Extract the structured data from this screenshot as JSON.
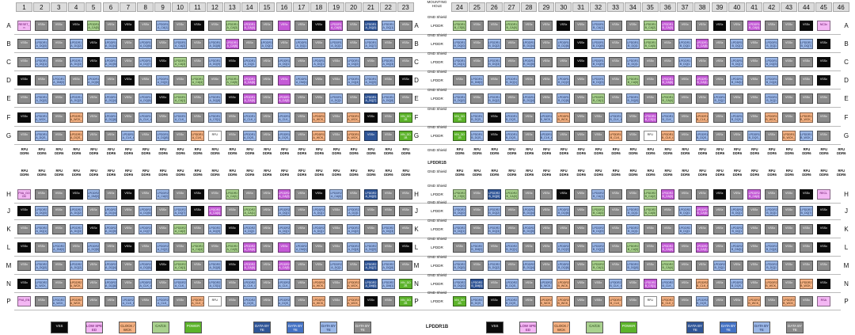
{
  "columns_left": [
    "1",
    "2",
    "3",
    "4",
    "5",
    "6",
    "7",
    "8",
    "9",
    "10",
    "11",
    "12",
    "13",
    "14",
    "15",
    "16",
    "17",
    "18",
    "19",
    "20",
    "21",
    "22",
    "23"
  ],
  "columns_right": [
    "24",
    "25",
    "26",
    "27",
    "28",
    "29",
    "30",
    "31",
    "32",
    "33",
    "34",
    "35",
    "36",
    "37",
    "38",
    "39",
    "40",
    "41",
    "42",
    "43",
    "44",
    "45",
    "46"
  ],
  "mounting_hole": "MOUNTING HOLE",
  "rows": [
    {
      "label": "A",
      "mid": "LPDDR"
    },
    {
      "label": "B",
      "mid": "LPDDR"
    },
    {
      "label": "C",
      "mid": "LPDDR"
    },
    {
      "label": "D",
      "mid": "LPDDR"
    },
    {
      "label": "E",
      "mid": "LPDDR"
    },
    {
      "label": "F",
      "mid": ""
    },
    {
      "label": "G",
      "mid": "LPDDR"
    },
    {
      "label": "H",
      "mid": "LPDDR"
    },
    {
      "label": "J",
      "mid": "LPDDR"
    },
    {
      "label": "K",
      "mid": "LPDDR"
    },
    {
      "label": "L",
      "mid": "LPDDR"
    },
    {
      "label": "M",
      "mid": "LPDDR"
    },
    {
      "label": "N",
      "mid": "LPDDR"
    },
    {
      "label": "P",
      "mid": "LPDDR"
    }
  ],
  "gnd_shield": "GND Shield",
  "center_label": "LPDDR1B",
  "legend_center": "LPDDR1B",
  "rfu_top": "RFU",
  "rfu_bottom": "DDR6",
  "legend": [
    {
      "label": "VSS",
      "cls": "k"
    },
    {
      "label": "LOW SPEED",
      "cls": "pk"
    },
    {
      "label": "CLOCK /WCK",
      "cls": "og"
    },
    {
      "label": "CA/CS",
      "cls": "gr"
    },
    {
      "label": "POWER",
      "cls": "gn"
    },
    {
      "label": "DATA BYTE",
      "cls": "db"
    },
    {
      "label": "DATA BYTE",
      "cls": "mb"
    },
    {
      "label": "DATA BYTE",
      "cls": "lb"
    },
    {
      "label": "DATA BYTE",
      "cls": "gy"
    }
  ],
  "colors": {
    "vss": "#0a0a0a",
    "low_speed": "#f3b6f3",
    "clock": "#f4b183",
    "ca_cs": "#a9d18e",
    "power": "#5cb32a",
    "data1": "#2f5597",
    "data2": "#4472c4",
    "data3": "#9bb7e6",
    "data4": "#8a8a8a"
  },
  "grid": {
    "A": [
      "pk:RESET_n",
      "gy:VSSx",
      "gy:VSSx",
      "k:VSSx",
      "gr:LPDDR1A_CA[0]",
      "gy:VSSx",
      "k:VSSx",
      "gy:VSSx",
      "lb:LPDDR1A_CA[1]",
      "gy:VSSx",
      "k:VSSx",
      "gy:VSSx",
      "gr:LPDDR1A_CA[3]",
      "pu:LPDDR1A_CA[4]",
      "gy:VSSx",
      "pu:VSSx",
      "gy:VSSx",
      "k:VSSx",
      "pu:LPDDR1A_CA[5]",
      "gy:VSSx",
      "db:LPDDR1A_DQ[0]",
      "lb:LPDDR1A_DQ[1]",
      "gy:VSSx",
      "gr:LPDDR1B_CS[0]",
      "gy:VSSx",
      "gy:VSSx",
      "gr:LPDDR1B_CA[0]",
      "gy:VSSx",
      "gy:VSSx",
      "k:VSSx",
      "gy:VSSx",
      "lb:LPDDR1B_CA[1]",
      "gy:VSSx",
      "gy:VSSx",
      "gr:LPDDR1B_CA[2]",
      "pu:LPDDR1B_CA[3]",
      "gy:VSSx",
      "gy:VSSx",
      "k:VSSx",
      "gy:VSSx",
      "pu:LPDDR1B_CA[4]",
      "gy:VSSx",
      "gy:VSSx",
      "k:VSSx",
      "pk:NC3x"
    ],
    "B": [
      "gy:VSSx",
      "lb:LPDDR1A_DQ[0]",
      "gy:VSSx",
      "lb:LPDDR1A_DQ[2]",
      "k:VSSx",
      "lb:LPDDR1A_DQ[4]",
      "gy:VSSx",
      "lb:LPDDR1A_DQ[6]",
      "gy:VSSx",
      "lb:LPDDR1A_CA[2]",
      "gy:VSSx",
      "lb:LPDDR1A_DQ[8]",
      "pu:LPDDR1A_CA[6]",
      "gy:VSSx",
      "lb:LPDDR1A_DQ[10]",
      "gy:VSSx",
      "lb:LPDDR1A_DQ[12]",
      "gy:VSSx",
      "lb:LPDDR1A_DQ[14]",
      "gy:VSSx",
      "lb:LPDDR1A_DQ[7]",
      "gy:VSSx",
      "gy:VSSx",
      "lb:LPDDR1B_DQ[0]",
      "gy:VSSx",
      "lb:LPDDR1B_DQ[2]",
      "gy:VSSx",
      "lb:LPDDR1B_DQ[4]",
      "gy:VSSx",
      "lb:LPDDR1B_DQ[6]",
      "k:VSSx",
      "lb:LPDDR1B_DQ[8]",
      "gy:VSSx",
      "lb:LPDDR1B_DQ[10]",
      "gr:LPDDR1B_CA[5]",
      "gy:VSSx",
      "lb:LPDDR1B_DQ[12]",
      "pu:LPDDR1B_CA[6]",
      "gy:VSSx",
      "lb:LPDDR1B_DQ[14]",
      "gy:VSSx",
      "lb:LPDDR1B_DQ[15]",
      "gy:VSSx",
      "lb:LPDDR1B_DQ[7]",
      "k:VSSx"
    ],
    "C": [
      "gy:VSSx",
      "lb:LPDDR1A_DQ[1]",
      "gy:VSSx",
      "lb:LPDDR1A_DQ[3]",
      "k:VSSx",
      "lb:LPDDR1A_DQ[5]",
      "gy:VSSx",
      "lb:LPDDR1A_DQ[7]",
      "k:VSSx",
      "gr:LPDDR1A_CA[3]",
      "gy:VSSx",
      "lb:LPDDR1A_DQ[9]",
      "k:VSSx",
      "lb:LPDDR1A_DQ[11]",
      "gy:VSSx",
      "lb:LPDDR1A_DQ[13]",
      "gy:VSSx",
      "lb:LPDDR1A_DQ[15]",
      "gy:VSSx",
      "lb:LPDDR1A_DQ[2]",
      "gy:VSSx",
      "lb:LPDDR1A_DQ[3]",
      "gy:VSSx",
      "lb:LPDDR1B_DQ[1]",
      "gy:VSSx",
      "lb:LPDDR1B_DQ[3]",
      "gy:VSSx",
      "lb:LPDDR1B_DQ[5]",
      "gy:VSSx",
      "gy:VSSx",
      "k:VSSx",
      "lb:LPDDR1B_DQ[9]",
      "gy:VSSx",
      "lb:LPDDR1B_DQ[11]",
      "gy:VSSx",
      "gy:VSSx",
      "lb:LPDDR1B_DQ[13]",
      "gy:VSSx",
      "gy:VSSx",
      "lb:LPDDR1B_DQ[15]",
      "gy:VSSx",
      "lb:LPDDR1B_DQ[3]",
      "gy:VSSx",
      "gy:VSSx",
      "k:VSSx"
    ],
    "D": [
      "k:VSSx",
      "gy:VSSx",
      "lb:LPDDR1A_DM[0]",
      "gy:VSSx",
      "lb:LPDDR1A_DQ[6]",
      "gy:VSSx",
      "k:VSSx",
      "gy:VSSx",
      "lb:LPDDR1A_DQ[1]",
      "gy:VSSx",
      "gr:LPDDR1A_CA[4]",
      "gy:VSSx",
      "gr:LPDDR1A_CA[5]",
      "pu:LPDDR1A_CA[6]",
      "gy:VSSx",
      "pu:VSSx",
      "lb:LPDDR1A_DM[1]",
      "gy:VSSx",
      "gy:VSSx",
      "lb:LPDDR1A_DQ[4]",
      "lb:LPDDR1A_DQ[5]",
      "gy:VSSx",
      "k:VSSx",
      "gy:VSSx",
      "lb:LPDDR1B_DM[0]",
      "gy:VSSx",
      "lb:LPDDR1B_DQ[1]",
      "gy:VSSx",
      "gy:VSSx",
      "lb:LPDDR1B_DQ[2]",
      "gy:VSSx",
      "lb:LPDDR1B_DQ[3]",
      "gy:VSSx",
      "gr:LPDDR1B_CA[5]",
      "gy:VSSx",
      "pu:LPDDR1B_CA[6]",
      "gy:VSSx",
      "pu:LPDDR1B_CA[1]",
      "gy:VSSx",
      "lb:LPDDR1B_DM[1]",
      "gy:VSSx",
      "lb:LPDDR1B_DQ[4]",
      "gy:VSSx",
      "gy:VSSx",
      "k:VSSx"
    ],
    "E": [
      "gy:VSSx",
      "lb:LPDDR1A_DQ[0]",
      "gy:VSSx",
      "lb:LPDDR1A_DQ[2]",
      "gy:VSSx",
      "lb:LPDDR1A_DQ[4]",
      "gy:VSSx",
      "lb:LPDDR1A_DQ[6]",
      "k:VSSx",
      "gr:LPDDR1A_CA[1]",
      "gy:VSSx",
      "lb:LPDDR1A_DQ[8]",
      "k:VSSx",
      "pu:LPDDR1A_CA[6]",
      "gy:VSSx",
      "pu:LPDDR1A_CA[5]",
      "gy:VSSx",
      "gy:VSSx",
      "lb:LPDDR1A_DQ[12]",
      "gy:VSSx",
      "db:LPDDR1A_DQ[7]",
      "lb:LPDDR1A_DQ[6]",
      "gy:VSSx",
      "lb:LPDDR1B_DQ[0]",
      "gy:VSSx",
      "lb:LPDDR1B_DQ[2]",
      "gy:VSSx",
      "lb:LPDDR1B_DQ[4]",
      "gy:VSSx",
      "lb:LPDDR1B_DQ[6]",
      "gy:VSSx",
      "gr:LPDDR1B_CA[1]",
      "gy:VSSx",
      "lb:LPDDR1B_DQ[8]",
      "gy:VSSx",
      "gr:LPDDR1B_CA[4]",
      "gy:VSSx",
      "gy:VSSx",
      "lb:LPDDR1B_DQ[12]",
      "gy:VSSx",
      "gy:VSSx",
      "lb:LPDDR1B_DQ[14]",
      "gy:VSSx",
      "gy:VSSx",
      "gy:VSSx"
    ],
    "F": [
      "k:VSSx",
      "lb:LPDDR1A_WCK_t",
      "gy:VSSx",
      "og:LPDDR1A_WCK_c",
      "gy:VSSx",
      "lb:LPDDR1A_DQ[8]",
      "gy:VSSx",
      "lb:LPDDR1A_CLK_t",
      "gy:VSSx",
      "lb:LPDDR1A_CLK_c",
      "gy:VSSx",
      "lb:LPDDR1A_CS[1]",
      "gy:VSSx",
      "lb:LPDDR1A_CLK_t",
      "gy:VSSx",
      "lb:LPDDR1A_CLK_c",
      "gy:VSSx",
      "og:LPDDR1A_WCK_t",
      "gy:VSSx",
      "og:LPDDR1A_WCK_c",
      "k:VSSx",
      "gy:VSSx",
      "gn:VIN_DD1B",
      "gn:VIN_DD1B",
      "lb:LPDDR1B_DQS_t",
      "k:VSSx",
      "lb:LPDDR1B_DQS_c",
      "gy:VSSx",
      "lb:LPDDR1B_WCK_t",
      "og:LPDDR1B_WCK_c",
      "gy:VSSx",
      "gy:VSSx",
      "lb:LPDDR1B_CLK_t",
      "gy:VSSx",
      "pu:LPDDR1B_CS[1]",
      "lb:LPDDR1B_CLK_c",
      "gy:VSSx",
      "og:LPDDR1B_CLK_t",
      "gy:VSSx",
      "lb:LPDDR1B_DQS_t",
      "gy:VSSx",
      "og:LPDDR1B_WCK_t",
      "gy:VSSx",
      "og:LPDDR1B_WCK_c",
      "gy:VSSx"
    ],
    "G": [
      "gy:VSSx",
      "lb:LPDDR1A_DQS_t",
      "gy:VSSx",
      "og:LPDDR1A_DQS_c",
      "gy:VSSx",
      "gy:VSSx",
      "lb:LPDDR1A_CLK_t",
      "gy:VSSx",
      "lb:LPDDR1A_DQ[8]",
      "gy:VSSx",
      "og:LPDDR1A_CLK_c",
      "wh:RFU",
      "gy:VSSx",
      "lb:LPDDR1A_DQS_t",
      "gy:VSSx",
      "lb:LPDDR1A_DQS_c",
      "gy:VSSx",
      "og:LPDDR1A_WCK_t",
      "gy:VSSx",
      "og:LPDDR1A_WCK_c",
      "db:VSSx",
      "gy:VSSx",
      "gn:VIN_DD1B",
      "gn:VIN_DD1B",
      "lb:LPDDR1B_DQS_c",
      "k:VSSx",
      "lb:LPDDR1B_DQS_t",
      "gy:VSSx",
      "lb:LPDDR1B_CLK_t",
      "gy:VSSx",
      "gy:VSSx",
      "gy:VSSx",
      "og:LPDDR1B_CLK_c",
      "gy:VSSx",
      "wh:RFU",
      "og:LPDDR1B_CLK_t",
      "gy:VSSx",
      "lb:LPDDR1B_DQS_c",
      "gy:VSSx",
      "gy:VSSx",
      "lb:LPDDR1B_DQS_t",
      "gy:VSSx",
      "og:LPDDR1B_WCK_t",
      "lb:LPDDR1B_WCK_c",
      "gy:VSSx"
    ],
    "H": [
      "pk:PVA_GOOD",
      "gy:VSSx",
      "gy:VSSx",
      "k:VSSx",
      "lb:LPDDR2A_DM[0]",
      "gy:VSSx",
      "k:VSSx",
      "gy:VSSx",
      "lb:LPDDR2A_CA[0]",
      "gy:VSSx",
      "k:VSSx",
      "gy:VSSx",
      "gr:LPDDR2A_CA[1]",
      "gy:VSSx",
      "gy:VSSx",
      "pu:LPDDR2A_CA[3]",
      "gy:VSSx",
      "k:VSSx",
      "lb:LPDDR2A_CA[6]",
      "gy:VSSx",
      "db:LPDDR2A_DQ[0]",
      "gy:VSSx",
      "gy:VSSx",
      "gr:LPDDR2B_CS[0]",
      "gy:VSSx",
      "db:LPDDR2B_DQ[0]",
      "gr:LPDDR2B_CA[0]",
      "gy:VSSx",
      "gy:VSSx",
      "k:VSSx",
      "gy:VSSx",
      "lb:LPDDR2B_CA[1]",
      "gy:VSSx",
      "gy:VSSx",
      "gr:LPDDR2B_CA[2]",
      "pu:LPDDR2B_CA[3]",
      "gy:VSSx",
      "gy:VSSx",
      "k:VSSx",
      "gy:VSSx",
      "pu:LPDDR2B_CA[4]",
      "gy:VSSx",
      "gy:VSSx",
      "k:VSSx",
      "pk:RECL"
    ],
    "J": [
      "k:VSSx",
      "lb:LPDDR2A_DQ[0]",
      "gy:VSSx",
      "lb:LPDDR2A_DQ[2]",
      "gy:VSSx",
      "lb:LPDDR2A_DQ[4]",
      "gy:VSSx",
      "lb:LPDDR2A_DQ[6]",
      "gy:VSSx",
      "lb:LPDDR2A_DQ[7]",
      "k:VSSx",
      "pu:LPDDR2A_CA[0]",
      "gy:VSSx",
      "gr:LPDDR2A_CA[1]",
      "gy:VSSx",
      "lb:LPDDR2A_DQ[10]",
      "gy:VSSx",
      "lb:LPDDR2A_DQ[12]",
      "gy:VSSx",
      "lb:LPDDR2A_DQ[14]",
      "gy:VSSx",
      "gy:VSSx",
      "gy:VSSx",
      "lb:LPDDR2B_DQ[0]",
      "gy:VSSx",
      "lb:LPDDR2B_DQ[2]",
      "gy:VSSx",
      "lb:LPDDR2B_DQ[4]",
      "gy:VSSx",
      "lb:LPDDR2B_DQ[6]",
      "gy:VSSx",
      "gr:LPDDR2B_CA[0]",
      "gy:VSSx",
      "lb:LPDDR2B_DQ[10]",
      "gr:LPDDR2B_CA[5]",
      "gy:VSSx",
      "lb:LPDDR2B_DQ[12]",
      "pu:LPDDR2B_CA[6]",
      "gy:VSSx",
      "lb:LPDDR2B_DQ[14]",
      "gy:VSSx",
      "lb:LPDDR2B_DQ[15]",
      "gy:VSSx",
      "lb:LPDDR2B_DQ[7]",
      "k:VSSx"
    ],
    "K": [
      "gy:VSSx",
      "lb:LPDDR2A_DQ[1]",
      "gy:VSSx",
      "lb:LPDDR2A_DQ[3]",
      "k:VSSx",
      "lb:LPDDR2A_DQ[5]",
      "gy:VSSx",
      "lb:LPDDR2A_DQ[7]",
      "gy:VSSx",
      "gr:LPDDR2A_CA[2]",
      "gy:VSSx",
      "lb:LPDDR2A_DQ[9]",
      "k:VSSx",
      "lb:LPDDR2A_DQ[11]",
      "gy:VSSx",
      "lb:LPDDR2A_DQ[13]",
      "gy:VSSx",
      "lb:LPDDR2A_DQ[15]",
      "gy:VSSx",
      "lb:LPDDR2A_DQ[2]",
      "gy:VSSx",
      "lb:LPDDR2A_DQ[3]",
      "gy:VSSx",
      "lb:LPDDR2B_DQ[1]",
      "gy:VSSx",
      "lb:LPDDR2B_DQ[3]",
      "gy:VSSx",
      "lb:LPDDR2B_DQ[5]",
      "gy:VSSx",
      "gy:VSSx",
      "gy:VSSx",
      "lb:LPDDR2B_DQ[9]",
      "gy:VSSx",
      "lb:LPDDR2B_DQ[11]",
      "gy:VSSx",
      "gy:VSSx",
      "lb:LPDDR2B_DQ[13]",
      "gy:VSSx",
      "gy:VSSx",
      "lb:LPDDR2B_DQ[15]",
      "gy:VSSx",
      "gy:VSSx",
      "gy:VSSx",
      "gy:VSSx",
      "k:VSSx"
    ],
    "L": [
      "k:VSSx",
      "gy:VSSx",
      "lb:LPDDR2A_DM[0]",
      "gy:VSSx",
      "lb:LPDDR2A_DQ[6]",
      "gy:VSSx",
      "k:VSSx",
      "gy:VSSx",
      "lb:LPDDR2A_DQ[1]",
      "gy:VSSx",
      "gr:LPDDR2A_CA[4]",
      "gy:VSSx",
      "gr:LPDDR2A_CA[5]",
      "pu:LPDDR2A_CA[6]",
      "gy:VSSx",
      "pu:VSSx",
      "lb:LPDDR2A_DM[1]",
      "gy:VSSx",
      "gy:VSSx",
      "lb:LPDDR2A_DQ[4]",
      "lb:LPDDR2A_DQ[5]",
      "gy:VSSx",
      "k:VSSx",
      "gy:VSSx",
      "lb:LPDDR2B_DM[0]",
      "gy:VSSx",
      "lb:LPDDR2B_DQ[1]",
      "gy:VSSx",
      "gy:VSSx",
      "lb:LPDDR2B_DQ[2]",
      "gy:VSSx",
      "lb:LPDDR2B_DQ[3]",
      "gy:VSSx",
      "gr:LPDDR2B_CA[5]",
      "gy:VSSx",
      "pu:LPDDR2B_CA[6]",
      "gy:VSSx",
      "pu:LPDDR2B_CA[1]",
      "gy:VSSx",
      "lb:LPDDR2B_DM[1]",
      "gy:VSSx",
      "lb:LPDDR2B_DQ[4]",
      "gy:VSSx",
      "gy:VSSx",
      "k:VSSx"
    ],
    "M": [
      "gy:VSSx",
      "lb:LPDDR2A_DQ[0]",
      "gy:VSSx",
      "lb:LPDDR2A_DQ[2]",
      "gy:VSSx",
      "lb:LPDDR2A_DQ[4]",
      "gy:VSSx",
      "lb:LPDDR2A_DQ[6]",
      "k:VSSx",
      "gr:LPDDR2A_CA[1]",
      "gy:VSSx",
      "lb:LPDDR2A_DQ[8]",
      "k:VSSx",
      "pu:LPDDR2A_CA[6]",
      "gy:VSSx",
      "pu:LPDDR2A_CA[5]",
      "gy:VSSx",
      "gy:VSSx",
      "lb:LPDDR2A_DQ[12]",
      "gy:VSSx",
      "db:LPDDR2A_DQ[7]",
      "lb:LPDDR2A_DQ[6]",
      "gy:VSSx",
      "lb:LPDDR2B_DQ[0]",
      "gy:VSSx",
      "lb:LPDDR2B_DQ[2]",
      "gy:VSSx",
      "lb:LPDDR2B_DQ[4]",
      "gy:VSSx",
      "lb:LPDDR2B_DQ[6]",
      "gy:VSSx",
      "gr:LPDDR2B_CA[1]",
      "gy:VSSx",
      "lb:LPDDR2B_DQ[8]",
      "gy:VSSx",
      "gr:LPDDR2B_CA[4]",
      "gy:VSSx",
      "gy:VSSx",
      "lb:LPDDR2B_DQ[12]",
      "gy:VSSx",
      "gy:VSSx",
      "lb:LPDDR2B_DQ[14]",
      "gy:VSSx",
      "gy:VSSx",
      "gy:VSSx"
    ],
    "N": [
      "k:VSSx",
      "lb:LPDDR2A_WCK_t",
      "gy:VSSx",
      "og:LPDDR2A_WCK_c",
      "gy:VSSx",
      "lb:LPDDR2A_DQ[8]",
      "gy:VSSx",
      "lb:LPDDR2A_CLK_t",
      "gy:VSSx",
      "lb:LPDDR2A_CLK_c",
      "gy:VSSx",
      "lb:LPDDR2A_CS[1]",
      "gy:VSSx",
      "lb:LPDDR2A_CLK_t",
      "gy:VSSx",
      "lb:LPDDR2A_CLK_c",
      "gy:VSSx",
      "og:LPDDR2A_WCK_t",
      "gy:VSSx",
      "og:LPDDR2A_WCK_c",
      "db:LPDDR2A_DM[0]",
      "lb:LPDDR2A_DM[1]",
      "gn:VIN_DD2B",
      "lb:LPDDR2B_DQ[0]",
      "db:LPDDR2B_DM[0]",
      "gy:VSSx",
      "lb:LPDDR2B_DQS_c",
      "gy:VSSx",
      "lb:LPDDR2B_WCK_t",
      "og:LPDDR2B_WCK_c",
      "gy:VSSx",
      "gy:VSSx",
      "lb:LPDDR2B_CLK_t",
      "gy:VSSx",
      "pu:LPDDR2B_CS[1]",
      "lb:LPDDR2B_CLK_c",
      "gy:VSSx",
      "og:LPDDR2B_CLK_t",
      "gy:VSSx",
      "lb:LPDDR2B_DQS_t",
      "gy:VSSx",
      "og:LPDDR2B_WCK_t",
      "gy:VSSx",
      "og:LPDDR2B_WCK_c",
      "k:VSSx"
    ],
    "P": [
      "pk:PVA_EN",
      "gy:VSSx",
      "lb:LPDDR2A_WCK_t",
      "og:LPDDR2A_WCK_c",
      "gy:VSSx",
      "gy:VSSx",
      "lb:LPDDR2A_CLK_t",
      "gy:VSSx",
      "lb:LPDDR2A_CLK_c",
      "gy:VSSx",
      "og:LPDDR2A_CLK_t",
      "wh:RFU",
      "gy:VSSx",
      "lb:LPDDR2A_DQS_t",
      "gy:VSSx",
      "lb:LPDDR2A_DQS_c",
      "gy:VSSx",
      "og:LPDDR2A_WCK_t",
      "gy:VSSx",
      "og:LPDDR2A_WCK_c",
      "k:VSSx",
      "gy:VSSx",
      "gn:VIN_DD2B",
      "gn:VIN_DD2B",
      "lb:LPDDR2B_DQS_c",
      "k:VSSx",
      "lb:LPDDR2B_DQS_t",
      "gy:VSSx",
      "og:LPDDR2B_WCK_t",
      "og:LPDDR2B_WCK_c",
      "gy:VSSx",
      "gy:VSSx",
      "og:LPDDR2B_CLK_c",
      "gy:VSSx",
      "wh:RFU",
      "og:LPDDR2B_CLK_t",
      "gy:VSSx",
      "lb:LPDDR2B_DQS_c",
      "gy:VSSx",
      "gy:VSSx",
      "og:LPDDR2B_WCK_t",
      "gy:VSSx",
      "og:LPDDR2B_WCK_c",
      "gy:VSSx",
      "pk:RSA"
    ]
  }
}
